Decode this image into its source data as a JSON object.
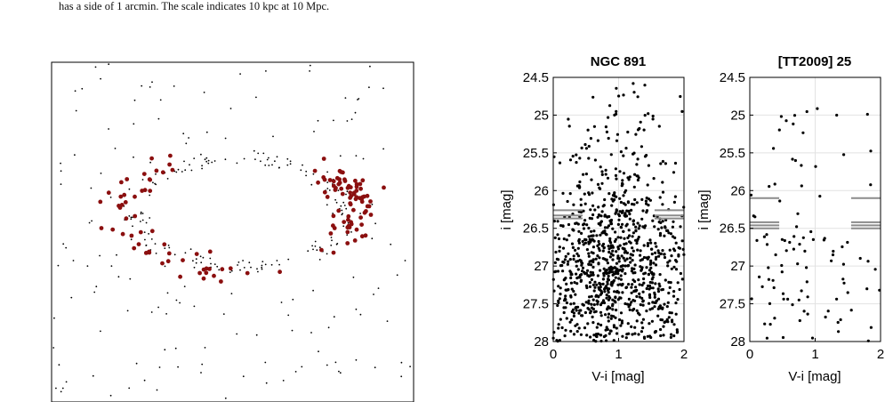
{
  "caption": {
    "fragment": "has a side of 1 arcmin. The scale indicates 10 kpc at 10 Mpc."
  },
  "colors": {
    "highlight": "#8b0f0f",
    "points": "#000000",
    "hlines": "#8c8c8c",
    "grid": "#e2e2e2"
  },
  "chart_data": [
    {
      "type": "scatter",
      "title": "",
      "description_of_panel": "",
      "xlim": [
        0,
        1
      ],
      "ylim": [
        0,
        1
      ],
      "ring_center": [
        0.52,
        0.44
      ],
      "ring_radii": [
        0.29,
        0.16
      ],
      "series": [
        {
          "name": "",
          "role": "background",
          "n": 330
        },
        {
          "name": "",
          "role": "highlighted",
          "n": 135
        }
      ]
    },
    {
      "type": "scatter",
      "title": "NGC 891",
      "xlabel": "V-i [mag]",
      "ylabel": "i [mag]",
      "xlim": [
        0,
        2
      ],
      "ylim": [
        24.5,
        28
      ],
      "y_inverted": true,
      "xticks": [
        "0",
        "1",
        "2"
      ],
      "yticks": [
        "24.5",
        "25",
        "25.5",
        "26",
        "26.5",
        "27",
        "27.5",
        "28"
      ],
      "grid": true,
      "n_points": 1050,
      "density_peak": {
        "x": 0.9,
        "y": 27.0
      },
      "hlines": [
        {
          "y": 26.26,
          "x": [
            0,
            0.45
          ]
        },
        {
          "y": 26.33,
          "x": [
            0,
            0.45
          ]
        },
        {
          "y": 26.37,
          "x": [
            0,
            0.45
          ]
        },
        {
          "y": 26.26,
          "x": [
            1.55,
            2
          ]
        },
        {
          "y": 26.33,
          "x": [
            1.55,
            2
          ]
        },
        {
          "y": 26.37,
          "x": [
            1.55,
            2
          ]
        }
      ]
    },
    {
      "type": "scatter",
      "title": "[TT2009] 25",
      "xlabel": "V-i [mag]",
      "ylabel": "i [mag]",
      "xlim": [
        0,
        2
      ],
      "ylim": [
        24.5,
        28
      ],
      "y_inverted": true,
      "xticks": [
        "0",
        "1",
        "2"
      ],
      "yticks": [
        "24.5",
        "25",
        "25.5",
        "26",
        "26.5",
        "27",
        "27.5",
        "28"
      ],
      "grid": true,
      "n_points": 115,
      "density_peak": {
        "x": 0.7,
        "y": 27.0
      },
      "hlines": [
        {
          "y": 26.1,
          "x": [
            0,
            0.45
          ]
        },
        {
          "y": 26.42,
          "x": [
            0,
            0.45
          ]
        },
        {
          "y": 26.46,
          "x": [
            0,
            0.45
          ]
        },
        {
          "y": 26.5,
          "x": [
            0,
            0.45
          ]
        },
        {
          "y": 26.1,
          "x": [
            1.55,
            2
          ]
        },
        {
          "y": 26.42,
          "x": [
            1.55,
            2
          ]
        },
        {
          "y": 26.46,
          "x": [
            1.55,
            2
          ]
        },
        {
          "y": 26.5,
          "x": [
            1.55,
            2
          ]
        }
      ]
    }
  ]
}
